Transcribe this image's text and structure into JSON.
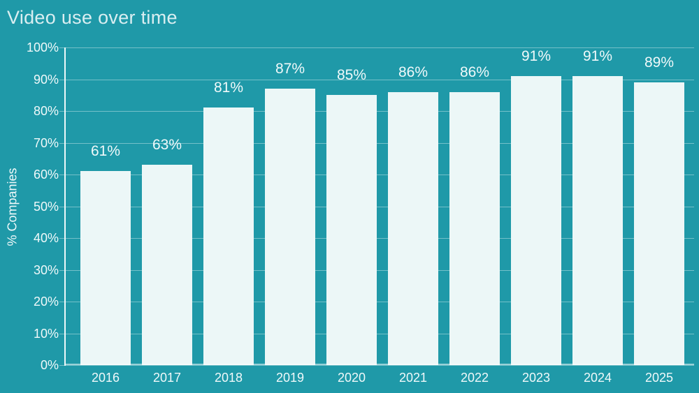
{
  "chart_data": {
    "type": "bar",
    "title": "Video use over time",
    "xlabel": "",
    "ylabel": "% Companies",
    "categories": [
      "2016",
      "2017",
      "2018",
      "2019",
      "2020",
      "2021",
      "2022",
      "2023",
      "2024",
      "2025"
    ],
    "values": [
      61,
      63,
      81,
      87,
      85,
      86,
      86,
      91,
      91,
      89
    ],
    "value_labels": [
      "61%",
      "63%",
      "81%",
      "87%",
      "85%",
      "86%",
      "86%",
      "91%",
      "91%",
      "89%"
    ],
    "y_tick_labels": [
      "0%",
      "10%",
      "20%",
      "30%",
      "40%",
      "50%",
      "60%",
      "70%",
      "80%",
      "90%",
      "100%"
    ],
    "ylim": [
      0,
      100
    ],
    "y_tick_step": 10,
    "grid": true,
    "legend": false,
    "colors": {
      "background": "#1f99a8",
      "bar": "#ecf7f7",
      "gridline": "rgba(255,255,255,0.38)",
      "gridline_baseline": "rgba(255,255,255,0.55)",
      "axis_line": "#eef8f9",
      "text": "#f0f9fa",
      "title": "#d9eef1"
    }
  }
}
